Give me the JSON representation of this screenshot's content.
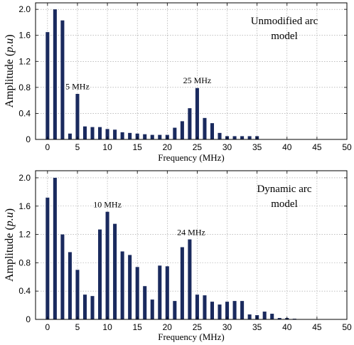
{
  "chart_data": [
    {
      "type": "bar",
      "title": "Unmodified arc\nmodel",
      "xlabel": "Frequency (MHz)",
      "ylabel": "Amplitude (p.u)",
      "xlim": [
        -2,
        50
      ],
      "ylim": [
        0,
        2.1
      ],
      "xticks": [
        0,
        5,
        10,
        15,
        20,
        25,
        30,
        35,
        40,
        45,
        50
      ],
      "yticks": [
        0,
        0.4,
        0.8,
        1.2,
        1.6,
        2.0
      ],
      "ytick_labels": [
        "0",
        "0.4",
        "0.8",
        "1.2",
        "1.6",
        "2.0"
      ],
      "grid": true,
      "color": "#1a2a5e",
      "x": [
        0,
        1.25,
        2.5,
        3.75,
        5,
        6.25,
        7.5,
        8.75,
        10,
        11.25,
        12.5,
        13.75,
        15,
        16.25,
        17.5,
        18.75,
        20,
        21.25,
        22.5,
        23.75,
        25,
        26.25,
        27.5,
        28.75,
        30,
        31.25,
        32.5,
        33.75,
        35
      ],
      "values": [
        1.65,
        2.0,
        1.83,
        0.09,
        0.7,
        0.2,
        0.19,
        0.19,
        0.16,
        0.15,
        0.11,
        0.1,
        0.09,
        0.08,
        0.07,
        0.07,
        0.07,
        0.18,
        0.28,
        0.48,
        0.79,
        0.33,
        0.25,
        0.1,
        0.05,
        0.05,
        0.05,
        0.05,
        0.05
      ],
      "annotations": [
        {
          "text": "5 MHz",
          "x": 5,
          "y": 0.75
        },
        {
          "text": "25 MHz",
          "x": 25,
          "y": 0.84
        }
      ]
    },
    {
      "type": "bar",
      "title": "Dynamic arc\nmodel",
      "xlabel": "Frequency (MHz)",
      "ylabel": "Amplitude (p.u)",
      "xlim": [
        -2,
        50
      ],
      "ylim": [
        0,
        2.1
      ],
      "xticks": [
        0,
        5,
        10,
        15,
        20,
        25,
        30,
        35,
        40,
        45,
        50
      ],
      "yticks": [
        0,
        0.4,
        0.8,
        1.2,
        1.6,
        2.0
      ],
      "ytick_labels": [
        "0",
        "0.4",
        "0.8",
        "1.2",
        "1.6",
        "2.0"
      ],
      "grid": true,
      "color": "#1a2a5e",
      "x": [
        0,
        1.25,
        2.5,
        3.75,
        5,
        6.25,
        7.5,
        8.75,
        10,
        11.25,
        12.5,
        13.75,
        15,
        16.25,
        17.5,
        18.75,
        20,
        21.25,
        22.5,
        23.75,
        25,
        26.25,
        27.5,
        28.75,
        30,
        31.25,
        32.5,
        33.75,
        35,
        36.25,
        37.5,
        38.75,
        40,
        41.25
      ],
      "values": [
        1.72,
        2.0,
        1.2,
        0.95,
        0.7,
        0.35,
        0.33,
        1.27,
        1.52,
        1.35,
        0.96,
        0.91,
        0.74,
        0.47,
        0.28,
        0.76,
        0.75,
        0.26,
        1.02,
        1.13,
        0.35,
        0.34,
        0.25,
        0.21,
        0.25,
        0.26,
        0.26,
        0.07,
        0.06,
        0.11,
        0.08,
        0.02,
        0.02,
        0.01
      ],
      "annotations": [
        {
          "text": "10 MHz",
          "x": 10,
          "y": 1.56
        },
        {
          "text": "24 MHz",
          "x": 24,
          "y": 1.17
        }
      ]
    }
  ]
}
